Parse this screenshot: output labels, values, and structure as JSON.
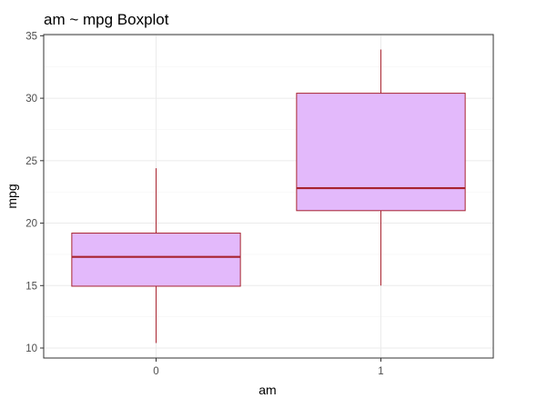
{
  "chart_data": {
    "type": "boxplot",
    "title": "am ~ mpg Boxplot",
    "xlabel": "am",
    "ylabel": "mpg",
    "categories": [
      "0",
      "1"
    ],
    "boxes": [
      {
        "category": "0",
        "min": 10.4,
        "q1": 14.95,
        "median": 17.3,
        "q3": 19.2,
        "max": 24.4
      },
      {
        "category": "1",
        "min": 15.0,
        "q1": 21.0,
        "median": 22.8,
        "q3": 30.4,
        "max": 33.9
      }
    ],
    "yticks": [
      10,
      15,
      20,
      25,
      30,
      35
    ],
    "ylim": [
      9.2,
      35.1
    ],
    "grid": true,
    "colors": {
      "box_fill": "#e3b9fb",
      "box_stroke": "#a8232f",
      "median": "#a8232f",
      "whisker": "#a8232f",
      "grid_major": "#ebebeb",
      "grid_minor": "#f4f4f4",
      "panel_border": "#333333",
      "tick": "#333333"
    }
  }
}
